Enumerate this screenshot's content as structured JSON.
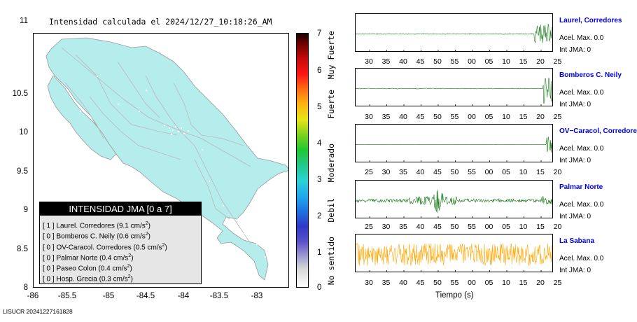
{
  "title": "Intensidad calculada el 2024/12/27_10:18:26_AM",
  "map": {
    "lat_ticks": [
      "11",
      "10.5",
      "10",
      "9.5",
      "9",
      "8.5",
      "8"
    ],
    "lon_ticks": [
      "-86",
      "-85.5",
      "-85",
      "-84.5",
      "-84",
      "-83.5",
      "-83"
    ],
    "land_color": "#b5ecec",
    "road_color": "#b8b8b8"
  },
  "legend": {
    "title": "INTENSIDAD JMA [0 a 7]",
    "rows": [
      {
        "count": "[ 1 ]",
        "station": "Laurel. Corredores",
        "accel": "(9.1 cm/s",
        "exp": "2",
        "close": ")"
      },
      {
        "count": "[ 0 ]",
        "station": "Bomberos C. Neily",
        "accel": "(0.6 cm/s",
        "exp": "2",
        "close": ")"
      },
      {
        "count": "[ 0 ]",
        "station": "OV-Caracol. Corredores",
        "accel": "(0.5 cm/s",
        "exp": "2",
        "close": ")"
      },
      {
        "count": "[ 0 ]",
        "station": "Palmar Norte",
        "accel": "(0.4 cm/s",
        "exp": "2",
        "close": ")"
      },
      {
        "count": "[ 0 ]",
        "station": "Paseo Colon",
        "accel": "(0.4 cm/s",
        "exp": "2",
        "close": ")"
      },
      {
        "count": "[ 0 ]",
        "station": "Hosp. Grecia",
        "accel": "(0.3 cm/s",
        "exp": "2",
        "close": ")"
      }
    ]
  },
  "colorbar": {
    "ticks": [
      "7",
      "6",
      "5",
      "4",
      "3",
      "2",
      "1",
      "0"
    ],
    "labels": [
      "Muy Fuerte",
      "Fuerte",
      "Moderado",
      "Debil",
      "No sentido"
    ]
  },
  "panels": [
    {
      "station": "Laurel, Corredores",
      "accel": "Acel. Max. 0.0",
      "jma": "Int JMA: 0",
      "ticks": [
        "30",
        "35",
        "40",
        "45",
        "50",
        "55",
        "00",
        "05",
        "10",
        "15",
        "20",
        "25"
      ],
      "color": "#1a7a1a",
      "activity": "burst-end"
    },
    {
      "station": "Bomberos C. Neily",
      "accel": "Acel. Max. 0.0",
      "jma": "Int JMA: 0",
      "ticks": [
        "30",
        "35",
        "40",
        "45",
        "50",
        "55",
        "00",
        "05",
        "10",
        "15",
        "20",
        "25"
      ],
      "color": "#1a7a1a",
      "activity": "burst-end-late"
    },
    {
      "station": "OV−Caracol, Corredore",
      "accel": "Acel. Max. 0.0",
      "jma": "Int JMA: 0",
      "ticks": [
        "25",
        "30",
        "35",
        "40",
        "45",
        "50",
        "55",
        "00",
        "05",
        "10",
        "15",
        "20"
      ],
      "color": "#1a7a1a",
      "activity": "burst-end-last"
    },
    {
      "station": "Palmar Norte",
      "accel": "Acel. Max. 0.0",
      "jma": "Int JMA: 0",
      "ticks": [
        "25",
        "30",
        "35",
        "40",
        "45",
        "50",
        "55",
        "00",
        "05",
        "10",
        "15",
        "20"
      ],
      "color": "#1a7a1a",
      "activity": "noisy-mid"
    },
    {
      "station": "La Sabana",
      "accel": "Acel. Max. 0.0",
      "jma": "Int JMA: 0",
      "ticks": [
        "30",
        "35",
        "40",
        "45",
        "50",
        "55",
        "00",
        "05",
        "10",
        "15",
        "20",
        "25"
      ],
      "color": "#ffa500",
      "activity": "noisy-all"
    }
  ],
  "xlabel": "Tiempo (s)",
  "footer": "LISUCR 20241227161828"
}
